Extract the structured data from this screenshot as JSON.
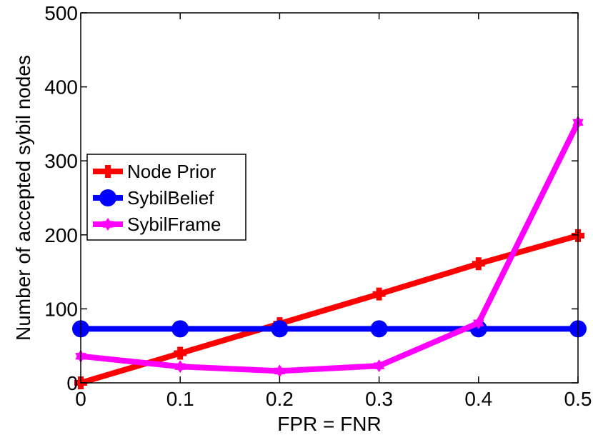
{
  "chart_data": {
    "type": "line",
    "xlabel": "FPR = FNR",
    "ylabel": "Number of accepted sybil nodes",
    "xlim": [
      0,
      0.5
    ],
    "ylim": [
      0,
      500
    ],
    "x": [
      0,
      0.1,
      0.2,
      0.3,
      0.4,
      0.5
    ],
    "xticks": [
      "0",
      "0.1",
      "0.2",
      "0.3",
      "0.4",
      "0.5"
    ],
    "yticks": [
      "0",
      "100",
      "200",
      "300",
      "400",
      "500"
    ],
    "grid": false,
    "legend_position": "left",
    "series": [
      {
        "name": "Node Prior",
        "color": "#ff0000",
        "marker": "plus",
        "values": [
          0,
          40,
          80,
          120,
          161,
          199
        ]
      },
      {
        "name": "SybilBelief",
        "color": "#0000ff",
        "marker": "circle",
        "values": [
          73,
          73,
          73,
          73,
          73,
          73
        ]
      },
      {
        "name": "SybilFrame",
        "color": "#ff00ff",
        "marker": "hexagram",
        "values": [
          36,
          22,
          16,
          23,
          81,
          352
        ]
      }
    ]
  }
}
